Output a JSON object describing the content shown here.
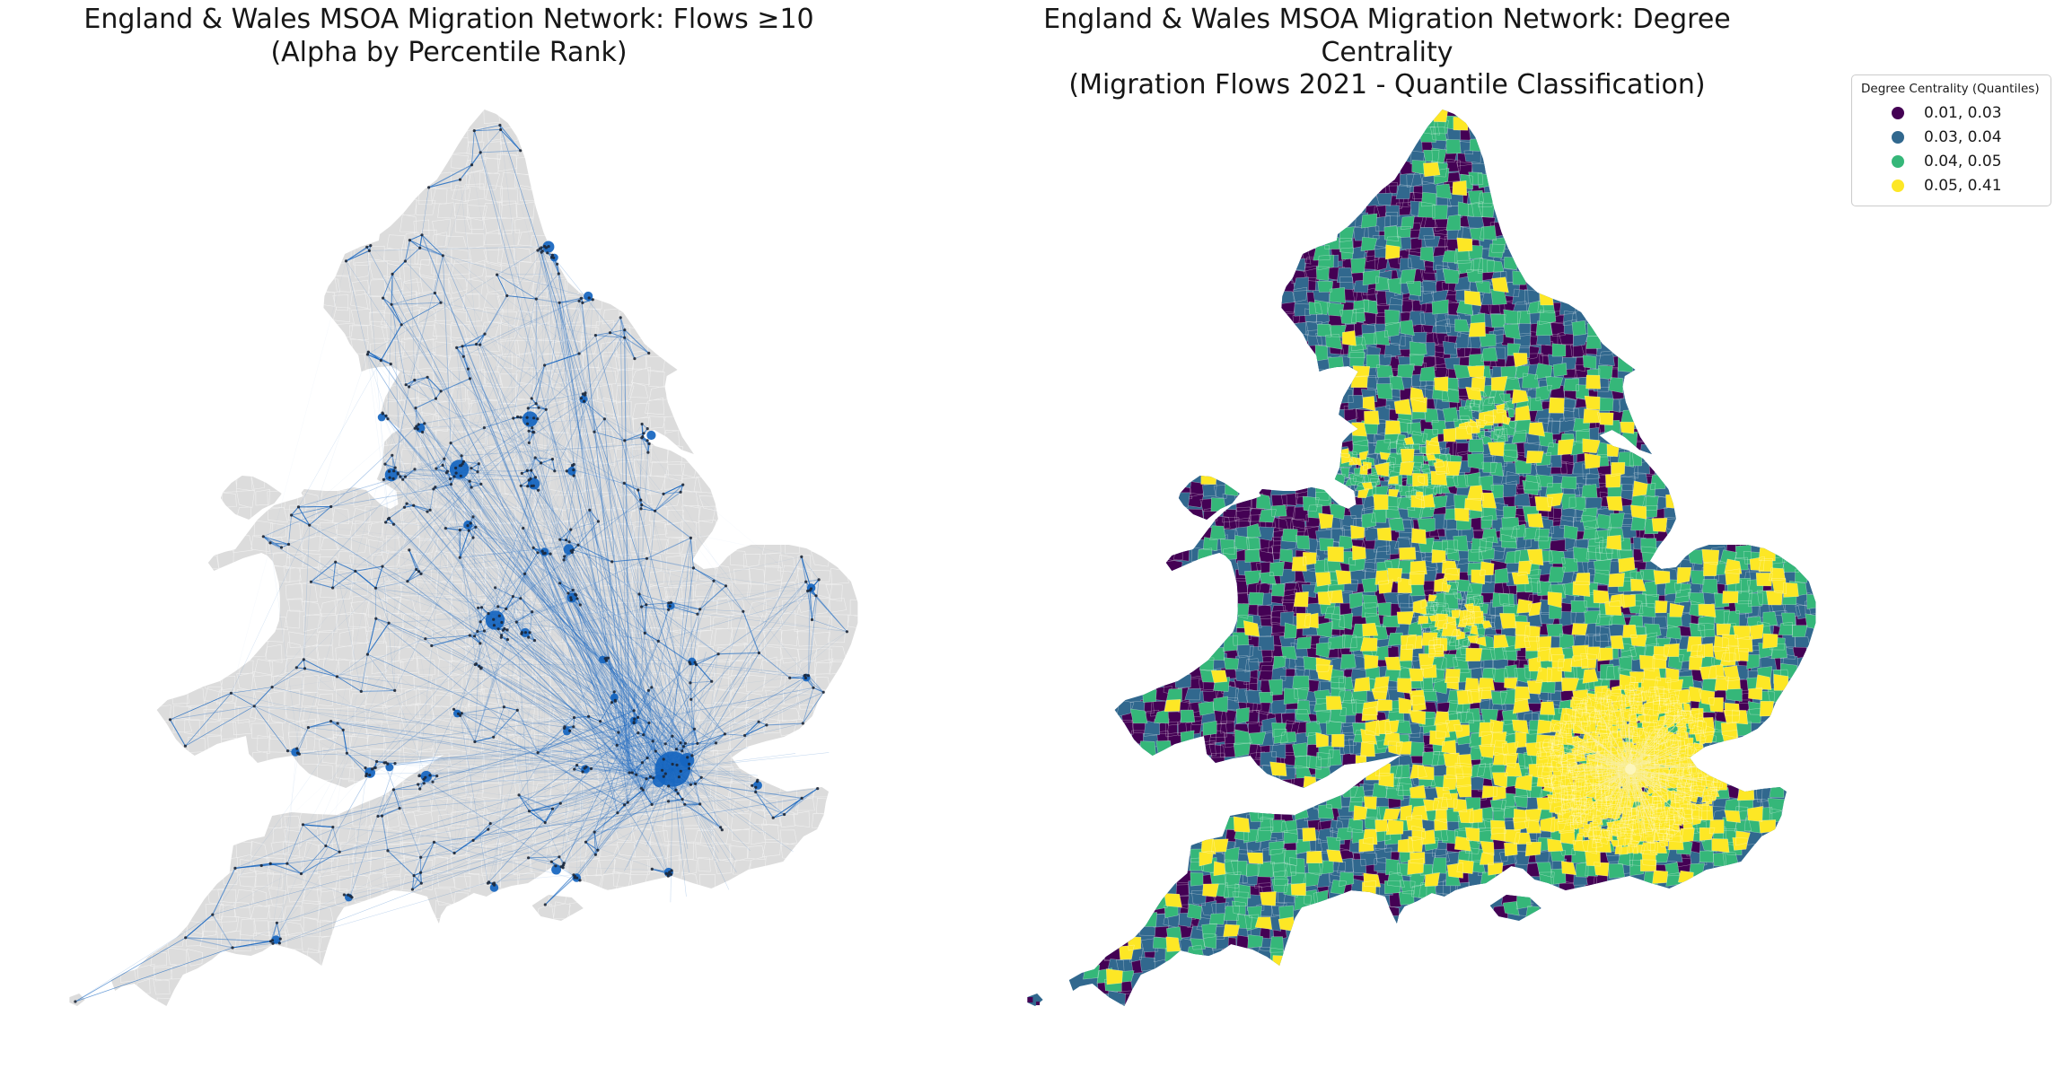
{
  "figure": {
    "background_color": "#ffffff",
    "panels": [
      {
        "id": "flows_network",
        "title_line1": "England & Wales MSOA Migration Network: Flows ≥10",
        "title_line2": "(Alpha by Percentile Rank)",
        "map_type": "network",
        "land_color": "#dcdcdc",
        "boundary_color": "#ffffff",
        "edge_color": "#1565c0",
        "node_color": "#1b2433",
        "starburst_color": "#1565c0"
      },
      {
        "id": "degree_centrality",
        "title_line1": "England & Wales MSOA Migration Network: Degree Centrality",
        "title_line2": "(Migration Flows 2021 - Quantile Classification)",
        "map_type": "choropleth",
        "base_color": "#31688e",
        "cell_border_color": "#ffffff",
        "starburst_color": "#f8eda0",
        "legend": {
          "title": "Degree Centrality (Quantiles)",
          "entries": [
            {
              "label": "0.01, 0.03",
              "color": "#440154"
            },
            {
              "label": "0.03, 0.04",
              "color": "#31688e"
            },
            {
              "label": "0.04, 0.05",
              "color": "#35b779"
            },
            {
              "label": "0.05, 0.41",
              "color": "#fde725"
            }
          ]
        }
      }
    ]
  }
}
